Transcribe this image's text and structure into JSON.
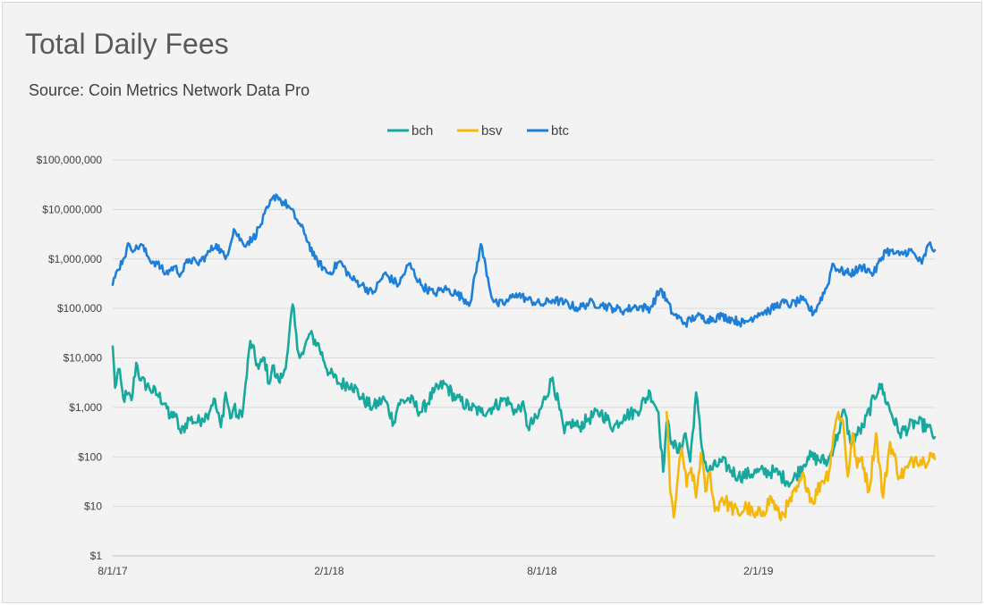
{
  "title": "Total Daily Fees",
  "subtitle": "Source:  Coin Metrics Network Data Pro",
  "colors": {
    "bch": "#17a89e",
    "bsv": "#f5b70c",
    "btc": "#1d7fd8",
    "grid": "#d9d9d9",
    "axis": "#bfbfbf"
  },
  "chart_data": {
    "type": "line",
    "y_scale": "log",
    "ylim": [
      1,
      100000000
    ],
    "xlim": [
      "2017-08-01",
      "2019-07-01"
    ],
    "x_tick_labels": [
      {
        "date": "2017-08-01",
        "label": "8/1/17"
      },
      {
        "date": "2018-02-01",
        "label": "2/1/18"
      },
      {
        "date": "2018-08-01",
        "label": "8/1/18"
      },
      {
        "date": "2019-02-01",
        "label": "2/1/19"
      }
    ],
    "y_tick_labels": [
      {
        "value": 1,
        "label": "$1"
      },
      {
        "value": 10,
        "label": "$10"
      },
      {
        "value": 100,
        "label": "$100"
      },
      {
        "value": 1000,
        "label": "$1,000"
      },
      {
        "value": 10000,
        "label": "$10,000"
      },
      {
        "value": 100000,
        "label": "$100,000"
      },
      {
        "value": 1000000,
        "label": "$1,000,000"
      },
      {
        "value": 10000000,
        "label": "$10,000,000"
      },
      {
        "value": 100000000,
        "label": "$100,000,000"
      }
    ],
    "grid": true,
    "legend_position": "top-center",
    "series": [
      {
        "name": "bch",
        "color": "#17a89e",
        "x": [
          "2017-08-01",
          "2017-08-03",
          "2017-08-06",
          "2017-08-10",
          "2017-08-13",
          "2017-08-17",
          "2017-08-21",
          "2017-08-25",
          "2017-09-01",
          "2017-09-08",
          "2017-09-15",
          "2017-09-18",
          "2017-09-22",
          "2017-09-28",
          "2017-10-05",
          "2017-10-12",
          "2017-10-16",
          "2017-10-20",
          "2017-10-26",
          "2017-11-01",
          "2017-11-05",
          "2017-11-09",
          "2017-11-12",
          "2017-11-16",
          "2017-11-20",
          "2017-11-26",
          "2017-12-03",
          "2017-12-08",
          "2017-12-12",
          "2017-12-15",
          "2017-12-18",
          "2017-12-20",
          "2017-12-24",
          "2017-12-28",
          "2018-01-01",
          "2018-01-05",
          "2018-01-10",
          "2018-01-15",
          "2018-01-22",
          "2018-02-01",
          "2018-02-10",
          "2018-02-20",
          "2018-03-01",
          "2018-03-10",
          "2018-03-20",
          "2018-03-28",
          "2018-04-01",
          "2018-04-10",
          "2018-04-20",
          "2018-05-01",
          "2018-05-10",
          "2018-05-20",
          "2018-06-01",
          "2018-06-10",
          "2018-06-20",
          "2018-07-01",
          "2018-07-10",
          "2018-07-15",
          "2018-07-20",
          "2018-07-28",
          "2018-08-10",
          "2018-08-20",
          "2018-08-25",
          "2018-09-01",
          "2018-09-10",
          "2018-09-20",
          "2018-10-01",
          "2018-10-10",
          "2018-10-20",
          "2018-11-01",
          "2018-11-08",
          "2018-11-12",
          "2018-11-15",
          "2018-11-20",
          "2018-11-25",
          "2018-12-01",
          "2018-12-05",
          "2018-12-10",
          "2018-12-15",
          "2018-12-20",
          "2019-01-01",
          "2019-01-15",
          "2019-02-01",
          "2019-02-15",
          "2019-03-01",
          "2019-03-15",
          "2019-04-01",
          "2019-04-10",
          "2019-04-15",
          "2019-04-20",
          "2019-05-01",
          "2019-05-15",
          "2019-06-01",
          "2019-06-15",
          "2019-06-25",
          "2019-07-01"
        ],
        "values": [
          17000,
          2500,
          6000,
          1500,
          1800,
          1400,
          8000,
          3500,
          2500,
          1800,
          1200,
          600,
          800,
          300,
          600,
          500,
          600,
          700,
          1500,
          400,
          2000,
          600,
          1000,
          600,
          1000,
          22000,
          6000,
          10000,
          3000,
          7000,
          4000,
          3500,
          4500,
          15000,
          120000,
          15000,
          12000,
          30000,
          20000,
          5000,
          3000,
          3000,
          1500,
          1000,
          1500,
          500,
          1200,
          1500,
          800,
          2000,
          3000,
          1500,
          1000,
          800,
          1000,
          1500,
          800,
          1200,
          400,
          600,
          4000,
          300,
          500,
          400,
          600,
          800,
          400,
          700,
          800,
          2000,
          800,
          50,
          500,
          200,
          120,
          300,
          80,
          2000,
          150,
          50,
          80,
          40,
          50,
          50,
          30,
          100,
          80,
          300,
          900,
          200,
          400,
          3000,
          300,
          500,
          400,
          250
        ]
      },
      {
        "name": "bsv",
        "color": "#f5b70c",
        "x": [
          "2018-11-15",
          "2018-11-18",
          "2018-11-21",
          "2018-11-24",
          "2018-11-28",
          "2018-12-02",
          "2018-12-06",
          "2018-12-10",
          "2018-12-14",
          "2018-12-18",
          "2018-12-22",
          "2018-12-26",
          "2019-01-01",
          "2019-01-08",
          "2019-01-15",
          "2019-01-22",
          "2019-01-29",
          "2019-02-05",
          "2019-02-12",
          "2019-02-19",
          "2019-02-26",
          "2019-03-05",
          "2019-03-12",
          "2019-03-19",
          "2019-03-26",
          "2019-04-02",
          "2019-04-06",
          "2019-04-10",
          "2019-04-14",
          "2019-04-18",
          "2019-04-22",
          "2019-04-26",
          "2019-04-30",
          "2019-05-06",
          "2019-05-12",
          "2019-05-18",
          "2019-05-24",
          "2019-06-01",
          "2019-06-08",
          "2019-06-15",
          "2019-06-22",
          "2019-06-27",
          "2019-07-01"
        ],
        "values": [
          800,
          20,
          6,
          30,
          150,
          25,
          60,
          15,
          120,
          20,
          50,
          8,
          15,
          10,
          7,
          10,
          6,
          8,
          15,
          6,
          10,
          20,
          40,
          12,
          30,
          50,
          300,
          800,
          500,
          40,
          300,
          60,
          100,
          20,
          300,
          15,
          200,
          40,
          60,
          100,
          80,
          120,
          90
        ]
      },
      {
        "name": "btc",
        "color": "#1d7fd8",
        "x": [
          "2017-08-01",
          "2017-08-05",
          "2017-08-10",
          "2017-08-15",
          "2017-08-20",
          "2017-08-25",
          "2017-09-01",
          "2017-09-08",
          "2017-09-15",
          "2017-09-22",
          "2017-09-28",
          "2017-10-05",
          "2017-10-12",
          "2017-10-20",
          "2017-10-28",
          "2017-11-05",
          "2017-11-12",
          "2017-11-20",
          "2017-11-28",
          "2017-12-05",
          "2017-12-12",
          "2017-12-18",
          "2017-12-22",
          "2017-12-28",
          "2018-01-05",
          "2018-01-12",
          "2018-01-20",
          "2018-02-01",
          "2018-02-10",
          "2018-02-20",
          "2018-03-01",
          "2018-03-10",
          "2018-03-20",
          "2018-04-01",
          "2018-04-10",
          "2018-04-20",
          "2018-05-01",
          "2018-05-10",
          "2018-05-20",
          "2018-06-01",
          "2018-06-10",
          "2018-06-20",
          "2018-06-24",
          "2018-07-01",
          "2018-07-10",
          "2018-07-20",
          "2018-08-01",
          "2018-08-10",
          "2018-08-20",
          "2018-09-01",
          "2018-09-10",
          "2018-09-20",
          "2018-10-01",
          "2018-10-10",
          "2018-10-20",
          "2018-11-01",
          "2018-11-10",
          "2018-11-20",
          "2018-12-01",
          "2018-12-10",
          "2018-12-20",
          "2019-01-01",
          "2019-01-10",
          "2019-01-20",
          "2019-02-01",
          "2019-02-10",
          "2019-02-20",
          "2019-03-01",
          "2019-03-10",
          "2019-03-20",
          "2019-04-01",
          "2019-04-05",
          "2019-04-10",
          "2019-04-20",
          "2019-05-01",
          "2019-05-10",
          "2019-05-20",
          "2019-06-01",
          "2019-06-10",
          "2019-06-20",
          "2019-06-26",
          "2019-07-01"
        ],
        "values": [
          300000,
          600000,
          1000000,
          2000000,
          1500000,
          2000000,
          1000000,
          800000,
          500000,
          700000,
          500000,
          1000000,
          800000,
          1200000,
          2000000,
          1000000,
          4000000,
          2000000,
          2500000,
          5000000,
          12000000,
          20000000,
          15000000,
          12000000,
          6000000,
          3000000,
          1000000,
          500000,
          900000,
          400000,
          300000,
          200000,
          500000,
          300000,
          800000,
          300000,
          200000,
          250000,
          200000,
          130000,
          2000000,
          150000,
          120000,
          130000,
          200000,
          150000,
          120000,
          150000,
          130000,
          100000,
          130000,
          120000,
          100000,
          90000,
          110000,
          100000,
          250000,
          80000,
          50000,
          70000,
          60000,
          70000,
          60000,
          50000,
          80000,
          90000,
          130000,
          120000,
          150000,
          80000,
          300000,
          800000,
          600000,
          500000,
          700000,
          500000,
          1500000,
          1200000,
          1500000,
          800000,
          2000000,
          1500000
        ]
      }
    ]
  }
}
